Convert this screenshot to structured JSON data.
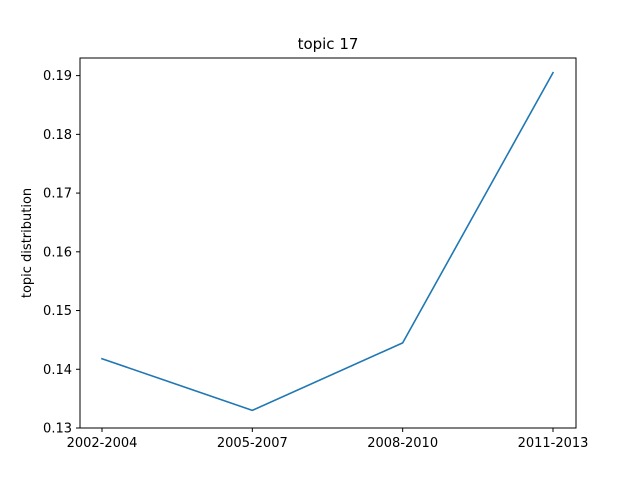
{
  "chart_data": {
    "type": "line",
    "title": "topic 17",
    "xlabel": "",
    "ylabel": "topic distribution",
    "categories": [
      "2002-2004",
      "2005-2007",
      "2008-2010",
      "2011-2013"
    ],
    "series": [
      {
        "values": [
          0.1418,
          0.133,
          0.1445,
          0.1905
        ],
        "color": "#1f77b4"
      }
    ],
    "ylim": [
      0.13,
      0.193
    ],
    "yticks": [
      0.13,
      0.14,
      0.15,
      0.16,
      0.17,
      0.18,
      0.19
    ],
    "ytick_labels": [
      "0.13",
      "0.14",
      "0.15",
      "0.16",
      "0.17",
      "0.18",
      "0.19"
    ],
    "grid": false,
    "legend": "none"
  }
}
